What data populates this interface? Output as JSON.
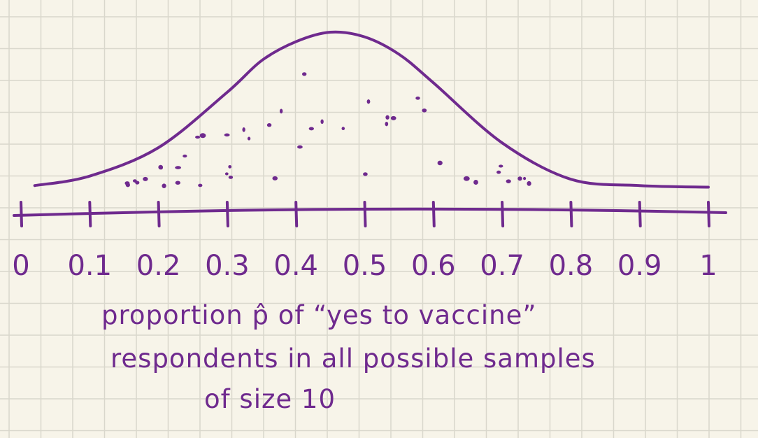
{
  "chart_data": {
    "type": "area",
    "description_kind": "hand-drawn sampling distribution curve",
    "x_ticks": [
      "0",
      "0.1",
      "0.2",
      "0.3",
      "0.4",
      "0.5",
      "0.6",
      "0.7",
      "0.8",
      "0.9",
      "1"
    ],
    "xlim": [
      0,
      1
    ],
    "xlabel_lines": [
      "proportion p̂ of “yes to vaccine”",
      "respondents in all possible samples",
      "of size 10"
    ],
    "curve": {
      "x": [
        0.02,
        0.1,
        0.2,
        0.3,
        0.35,
        0.4,
        0.45,
        0.5,
        0.55,
        0.6,
        0.7,
        0.8,
        0.9,
        1.0
      ],
      "density": [
        0.03,
        0.09,
        0.27,
        0.62,
        0.82,
        0.94,
        1.0,
        0.97,
        0.86,
        0.68,
        0.3,
        0.07,
        0.03,
        0.02
      ]
    },
    "grid": true,
    "colors": {
      "ink": "#6f2a8e",
      "grid": "#d9d7cc",
      "paper": "#f7f4e9"
    }
  }
}
